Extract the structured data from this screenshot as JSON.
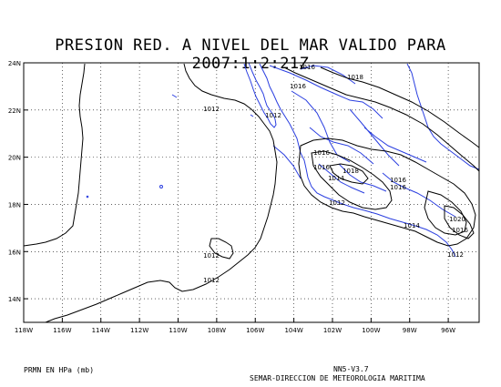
{
  "title": "PRESION RED. A NIVEL DEL MAR VALIDO PARA 2007:1:2:21Z",
  "map": {
    "lat_ticks": [
      "24N",
      "22N",
      "20N",
      "18N",
      "16N",
      "14N"
    ],
    "lon_ticks": [
      "118W",
      "116W",
      "114W",
      "112W",
      "110W",
      "108W",
      "106W",
      "104W",
      "102W",
      "100W",
      "98W",
      "96W"
    ],
    "colors": {
      "coast": "#2b3fe0",
      "contour": "#000000",
      "grid": "#000000"
    },
    "contour_labels": [
      "1016",
      "1016",
      "1018",
      "1012",
      "1012",
      "1016",
      "1016",
      "1018",
      "1014",
      "1016",
      "1016",
      "1012",
      "1014",
      "1020",
      "1016",
      "1012",
      "1012",
      "1012"
    ]
  },
  "footer": {
    "units": "PRMN EN HPa (mb)",
    "version": "NN5-V3.7",
    "credit": "SEMAR-DIRECCION DE METEOROLOGIA MARITIMA"
  }
}
